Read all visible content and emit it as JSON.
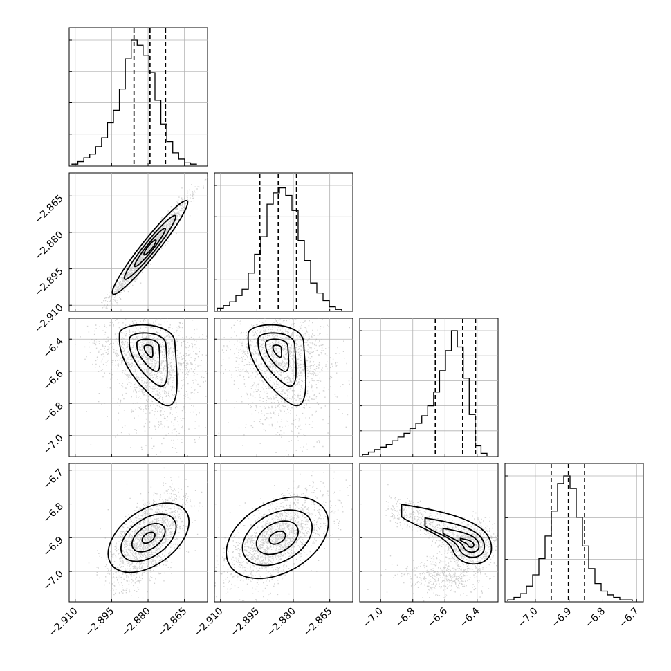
{
  "chart_data": {
    "type": "corner",
    "parameters": [
      {
        "index": 0,
        "range": [
          -2.9125,
          -2.8555
        ],
        "ticks": [
          -2.91,
          -2.895,
          -2.88,
          -2.865
        ],
        "tick_labels": [
          "−2.910",
          "−2.895",
          "−2.880",
          "−2.865"
        ],
        "quantiles": [
          -2.8858,
          -2.8792,
          -2.8728
        ],
        "median": -2.8792,
        "sigma": 0.0058,
        "hist_yticks": 4,
        "hist_counts": [
          1,
          3,
          6,
          9,
          15,
          22,
          34,
          44,
          61,
          85,
          100,
          96,
          88,
          74,
          52,
          33,
          19,
          10,
          5,
          2,
          1
        ]
      },
      {
        "index": 1,
        "range": [
          -2.9125,
          -2.8555
        ],
        "ticks": [
          -2.91,
          -2.895,
          -2.88,
          -2.865
        ],
        "tick_labels": [
          "−2.910",
          "−2.895",
          "−2.880",
          "−2.865"
        ],
        "quantiles": [
          -2.8938,
          -2.8862,
          -2.8787
        ],
        "median": -2.8862,
        "sigma": 0.0075,
        "hist_yticks": 4,
        "hist_counts": [
          2,
          4,
          7,
          12,
          17,
          30,
          45,
          59,
          85,
          94,
          98,
          92,
          80,
          56,
          40,
          22,
          14,
          8,
          3,
          1
        ]
      },
      {
        "index": 2,
        "range": [
          -7.13,
          -6.27
        ],
        "ticks": [
          -7.0,
          -6.8,
          -6.6,
          -6.4
        ],
        "tick_labels": [
          "−7.0",
          "−6.8",
          "−6.6",
          "−6.4"
        ],
        "quantiles": [
          -6.66,
          -6.49,
          -6.41
        ],
        "median": -6.49,
        "sigma": 0.1,
        "hist_yticks": 5,
        "hist_counts": [
          1,
          3,
          5,
          7,
          9,
          12,
          15,
          18,
          22,
          26,
          32,
          40,
          51,
          68,
          84,
          100,
          87,
          62,
          33,
          8,
          2
        ]
      },
      {
        "index": 3,
        "range": [
          -7.09,
          -6.68
        ],
        "ticks": [
          -7.0,
          -6.9,
          -6.8,
          -6.7
        ],
        "tick_labels": [
          "−7.0",
          "−6.9",
          "−6.8",
          "−6.7"
        ],
        "quantiles": [
          -6.953,
          -6.902,
          -6.854
        ],
        "median": -6.902,
        "sigma": 0.05,
        "hist_yticks": 3,
        "hist_counts": [
          1,
          3,
          6,
          12,
          21,
          34,
          52,
          72,
          94,
          100,
          90,
          67,
          44,
          26,
          14,
          8,
          5,
          3,
          1,
          1
        ]
      }
    ],
    "pairs": [
      {
        "row": 1,
        "col": 0,
        "center": [
          -2.8792,
          -2.8862
        ],
        "corr": 0.97,
        "shape": "gaussian"
      },
      {
        "row": 2,
        "col": 0,
        "center": [
          -2.8798,
          -6.46
        ],
        "corr": 0.0,
        "shape": "tail"
      },
      {
        "row": 2,
        "col": 1,
        "center": [
          -2.8866,
          -6.46
        ],
        "corr": 0.0,
        "shape": "tail"
      },
      {
        "row": 3,
        "col": 0,
        "center": [
          -2.8798,
          -6.9
        ],
        "corr": 0.6,
        "shape": "gaussian"
      },
      {
        "row": 3,
        "col": 1,
        "center": [
          -2.8866,
          -6.9
        ],
        "corr": 0.6,
        "shape": "gaussian"
      },
      {
        "row": 3,
        "col": 2,
        "center": [
          -6.44,
          -6.92
        ],
        "corr": -0.6,
        "shape": "banana"
      }
    ],
    "grid": true,
    "title": "",
    "xlabel": "",
    "ylabel": ""
  }
}
